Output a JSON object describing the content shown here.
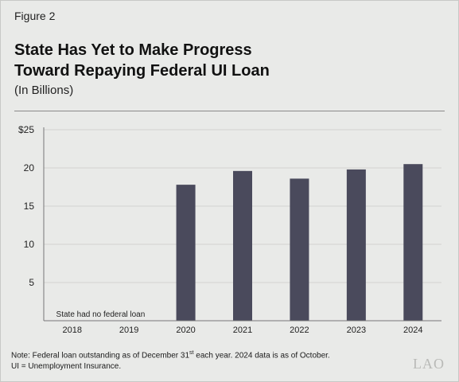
{
  "figure_label": "Figure 2",
  "title_line1": "State Has Yet to Make Progress",
  "title_line2": "Toward Repaying Federal UI Loan",
  "subtitle": "(In Billions)",
  "note_prefix": "Note: Federal loan outstanding as of December 31",
  "note_sup": "st",
  "note_suffix": " each year. 2024 data is as of October.",
  "note2": "UI = Unemployment Insurance.",
  "logo": "LAO",
  "colors": {
    "bar": "#4a4a5c",
    "grid": "#d2d3d0",
    "axis": "#777777",
    "background": "#e9eae8"
  },
  "chart_data": {
    "type": "bar",
    "categories": [
      "2018",
      "2019",
      "2020",
      "2021",
      "2022",
      "2023",
      "2024"
    ],
    "values": [
      null,
      null,
      17.8,
      19.6,
      18.6,
      19.8,
      20.5
    ],
    "yticks": [
      "5",
      "10",
      "15",
      "20",
      "$25"
    ],
    "ytick_values": [
      5,
      10,
      15,
      20,
      25
    ],
    "ylim": [
      0,
      25
    ],
    "grid": true,
    "annotation": "State had no federal loan",
    "xlabel": "",
    "ylabel": ""
  }
}
